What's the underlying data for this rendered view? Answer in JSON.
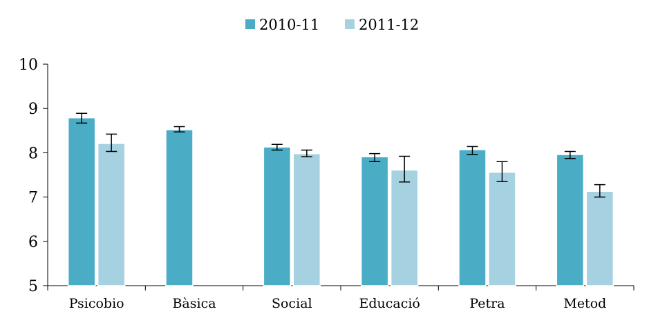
{
  "chart_data": {
    "type": "bar",
    "categories": [
      "Psicobio",
      "Bàsica",
      "Social",
      "Educació",
      "Petra",
      "Metod"
    ],
    "series": [
      {
        "name": "2010-11",
        "color": "#4BACC6",
        "values": [
          8.79,
          8.52,
          8.13,
          7.91,
          8.07,
          7.96
        ],
        "error_low": [
          8.67,
          8.47,
          8.06,
          7.8,
          7.96,
          7.87
        ],
        "error_high": [
          8.89,
          8.59,
          8.19,
          7.98,
          8.14,
          8.03
        ]
      },
      {
        "name": "2011-12",
        "color": "#A5D1E0",
        "values": [
          8.21,
          null,
          7.98,
          7.61,
          7.56,
          7.13
        ],
        "error_low": [
          8.03,
          null,
          7.91,
          7.34,
          7.35,
          7.0
        ],
        "error_high": [
          8.42,
          null,
          8.06,
          7.92,
          7.8,
          7.28
        ]
      }
    ],
    "ylim": [
      5,
      10
    ],
    "yticks": [
      "5",
      "6",
      "7",
      "8",
      "9",
      "10"
    ],
    "xlabel": "",
    "ylabel": "",
    "title": "",
    "legend_position": "top-center",
    "grid": false
  }
}
